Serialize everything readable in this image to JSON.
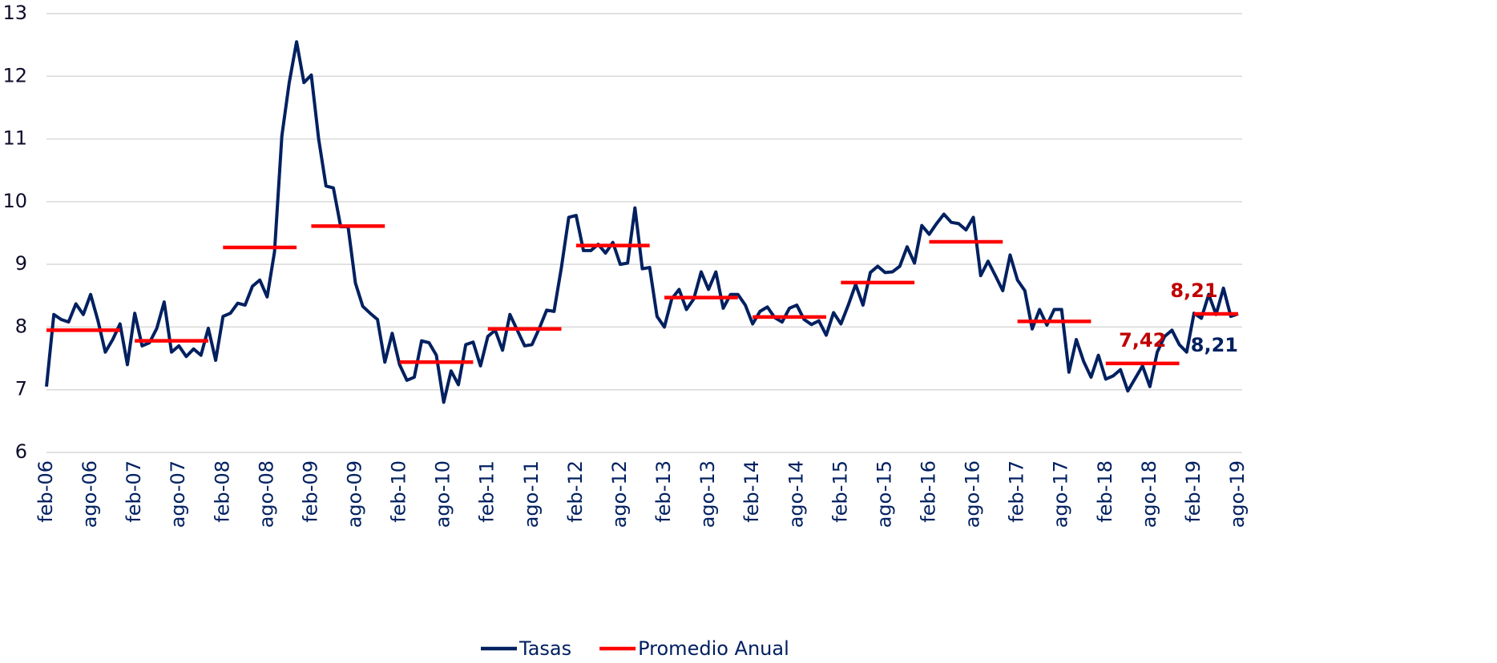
{
  "chart_data": {
    "type": "line",
    "categories": [
      "feb-06",
      null,
      null,
      null,
      null,
      null,
      "ago-06",
      null,
      null,
      null,
      null,
      null,
      "feb-07",
      null,
      null,
      null,
      null,
      null,
      "ago-07",
      null,
      null,
      null,
      null,
      null,
      "feb-08",
      null,
      null,
      null,
      null,
      null,
      "ago-08",
      null,
      null,
      null,
      null,
      null,
      "feb-09",
      null,
      null,
      null,
      null,
      null,
      "ago-09",
      null,
      null,
      null,
      null,
      null,
      "feb-10",
      null,
      null,
      null,
      null,
      null,
      "ago-10",
      null,
      null,
      null,
      null,
      null,
      "feb-11",
      null,
      null,
      null,
      null,
      null,
      "ago-11",
      null,
      null,
      null,
      null,
      null,
      "feb-12",
      null,
      null,
      null,
      null,
      null,
      "ago-12",
      null,
      null,
      null,
      null,
      null,
      "feb-13",
      null,
      null,
      null,
      null,
      null,
      "ago-13",
      null,
      null,
      null,
      null,
      null,
      "feb-14",
      null,
      null,
      null,
      null,
      null,
      "ago-14",
      null,
      null,
      null,
      null,
      null,
      "feb-15",
      null,
      null,
      null,
      null,
      null,
      "ago-15",
      null,
      null,
      null,
      null,
      null,
      "feb-16",
      null,
      null,
      null,
      null,
      null,
      "ago-16",
      null,
      null,
      null,
      null,
      null,
      "feb-17",
      null,
      null,
      null,
      null,
      null,
      "ago-17",
      null,
      null,
      null,
      null,
      null,
      "feb-18",
      null,
      null,
      null,
      null,
      null,
      "ago-18",
      null,
      null,
      null,
      null,
      null,
      "feb-19",
      null,
      null,
      null,
      null,
      null,
      "ago-19"
    ],
    "series": [
      {
        "name": "Tasas",
        "color": "#002060",
        "values": [
          7.05,
          8.2,
          8.12,
          8.08,
          8.37,
          8.2,
          8.52,
          8.1,
          7.6,
          7.8,
          8.05,
          7.4,
          8.22,
          7.7,
          7.75,
          7.98,
          8.4,
          7.6,
          7.7,
          7.53,
          7.65,
          7.55,
          7.98,
          7.47,
          8.17,
          8.22,
          8.38,
          8.35,
          8.65,
          8.75,
          8.48,
          9.2,
          11.05,
          11.9,
          12.55,
          11.9,
          12.02,
          11.0,
          10.25,
          10.22,
          9.6,
          9.6,
          8.7,
          8.33,
          8.22,
          8.12,
          7.44,
          7.9,
          7.4,
          7.15,
          7.2,
          7.78,
          7.75,
          7.55,
          6.8,
          7.3,
          7.08,
          7.72,
          7.76,
          7.38,
          7.85,
          7.95,
          7.63,
          8.2,
          7.95,
          7.7,
          7.72,
          7.98,
          8.27,
          8.25,
          8.95,
          9.75,
          9.78,
          9.22,
          9.22,
          9.32,
          9.18,
          9.35,
          9.0,
          9.02,
          9.9,
          8.93,
          8.95,
          8.17,
          8.0,
          8.45,
          8.6,
          8.28,
          8.45,
          8.88,
          8.6,
          8.88,
          8.3,
          8.52,
          8.52,
          8.35,
          8.05,
          8.25,
          8.32,
          8.15,
          8.08,
          8.3,
          8.35,
          8.12,
          8.04,
          8.1,
          7.87,
          8.23,
          8.05,
          8.35,
          8.68,
          8.35,
          8.87,
          8.97,
          8.87,
          8.88,
          8.97,
          9.28,
          9.02,
          9.62,
          9.48,
          9.65,
          9.8,
          9.67,
          9.65,
          9.55,
          9.75,
          8.82,
          9.05,
          8.82,
          8.58,
          9.15,
          8.75,
          8.58,
          7.97,
          8.28,
          8.03,
          8.28,
          8.28,
          7.28,
          7.8,
          7.45,
          7.2,
          7.55,
          7.17,
          7.22,
          7.32,
          6.98,
          7.18,
          7.38,
          7.05,
          7.6,
          7.85,
          7.95,
          7.72,
          7.6,
          8.22,
          8.14,
          8.52,
          8.2,
          8.62,
          8.17,
          8.21
        ],
        "value_labels": [
          null,
          null,
          null,
          null,
          null,
          null,
          null,
          null,
          null,
          null,
          null,
          null,
          null,
          null,
          null,
          null,
          null,
          null,
          null,
          null,
          null,
          null,
          null,
          null,
          null,
          null,
          null,
          null,
          null,
          null,
          null,
          null,
          null,
          null,
          null,
          null,
          null,
          null,
          null,
          null,
          null,
          null,
          null,
          null,
          null,
          null,
          null,
          null,
          null,
          null,
          null,
          null,
          null,
          null,
          null,
          null,
          null,
          null,
          null,
          null,
          null,
          null,
          null,
          null,
          null,
          null,
          null,
          null,
          null,
          null,
          null,
          null,
          null,
          null,
          null,
          null,
          null,
          null,
          null,
          null,
          null,
          null,
          null,
          null,
          null,
          null,
          null,
          null,
          null,
          null,
          null,
          null,
          null,
          null,
          null,
          null,
          null,
          null,
          null,
          null,
          null,
          null,
          null,
          null,
          null,
          null,
          null,
          null,
          null,
          null,
          null,
          null,
          null,
          null,
          null,
          null,
          null,
          null,
          null,
          null,
          null,
          null,
          null,
          null,
          null,
          null,
          null,
          null,
          null,
          null,
          null,
          null,
          null,
          null,
          null,
          null,
          null,
          null,
          null,
          null,
          null,
          null,
          null,
          null,
          null,
          null,
          null,
          null,
          null,
          null,
          null,
          null,
          null,
          null,
          null,
          null,
          null,
          null,
          null,
          null,
          null,
          null,
          "8,21"
        ]
      },
      {
        "name": "Promedio Anual",
        "color": "#ff0000",
        "values": [
          7.95,
          7.95,
          7.95,
          7.95,
          7.95,
          7.95,
          7.95,
          7.95,
          7.95,
          7.95,
          7.95,
          null,
          7.78,
          7.78,
          7.78,
          7.78,
          7.78,
          7.78,
          7.78,
          7.78,
          7.78,
          7.78,
          7.78,
          null,
          9.27,
          9.27,
          9.27,
          9.27,
          9.27,
          9.27,
          9.27,
          9.27,
          9.27,
          9.27,
          9.27,
          null,
          9.61,
          9.61,
          9.61,
          9.61,
          9.61,
          9.61,
          9.61,
          9.61,
          9.61,
          9.61,
          9.61,
          null,
          7.44,
          7.44,
          7.44,
          7.44,
          7.44,
          7.44,
          7.44,
          7.44,
          7.44,
          7.44,
          7.44,
          null,
          7.97,
          7.97,
          7.97,
          7.97,
          7.97,
          7.97,
          7.97,
          7.97,
          7.97,
          7.97,
          7.97,
          null,
          9.3,
          9.3,
          9.3,
          9.3,
          9.3,
          9.3,
          9.3,
          9.3,
          9.3,
          9.3,
          9.3,
          null,
          8.47,
          8.47,
          8.47,
          8.47,
          8.47,
          8.47,
          8.47,
          8.47,
          8.47,
          8.47,
          8.47,
          null,
          8.16,
          8.16,
          8.16,
          8.16,
          8.16,
          8.16,
          8.16,
          8.16,
          8.16,
          8.16,
          8.16,
          null,
          8.71,
          8.71,
          8.71,
          8.71,
          8.71,
          8.71,
          8.71,
          8.71,
          8.71,
          8.71,
          8.71,
          null,
          9.36,
          9.36,
          9.36,
          9.36,
          9.36,
          9.36,
          9.36,
          9.36,
          9.36,
          9.36,
          9.36,
          null,
          8.09,
          8.09,
          8.09,
          8.09,
          8.09,
          8.09,
          8.09,
          8.09,
          8.09,
          8.09,
          8.09,
          null,
          7.42,
          7.42,
          7.42,
          7.42,
          7.42,
          7.42,
          7.42,
          7.42,
          7.42,
          7.42,
          7.42,
          null,
          8.21,
          8.21,
          8.21,
          8.21,
          8.21,
          8.21,
          8.21
        ],
        "value_labels": [
          null,
          null,
          null,
          null,
          null,
          null,
          null,
          null,
          null,
          null,
          null,
          null,
          null,
          null,
          null,
          null,
          null,
          null,
          null,
          null,
          null,
          null,
          null,
          null,
          null,
          null,
          null,
          null,
          null,
          null,
          null,
          null,
          null,
          null,
          null,
          null,
          null,
          null,
          null,
          null,
          null,
          null,
          null,
          null,
          null,
          null,
          null,
          null,
          null,
          null,
          null,
          null,
          null,
          null,
          null,
          null,
          null,
          null,
          null,
          null,
          null,
          null,
          null,
          null,
          null,
          null,
          null,
          null,
          null,
          null,
          null,
          null,
          null,
          null,
          null,
          null,
          null,
          null,
          null,
          null,
          null,
          null,
          null,
          null,
          null,
          null,
          null,
          null,
          null,
          null,
          null,
          null,
          null,
          null,
          null,
          null,
          null,
          null,
          null,
          null,
          null,
          null,
          null,
          null,
          null,
          null,
          null,
          null,
          null,
          null,
          null,
          null,
          null,
          null,
          null,
          null,
          null,
          null,
          null,
          null,
          null,
          null,
          null,
          null,
          null,
          null,
          null,
          null,
          null,
          null,
          null,
          null,
          null,
          null,
          null,
          null,
          null,
          null,
          null,
          null,
          null,
          null,
          null,
          null,
          null,
          null,
          null,
          null,
          null,
          "7,42",
          null,
          null,
          null,
          null,
          null,
          null,
          "8,21",
          null,
          null,
          null,
          null,
          null,
          null
        ]
      }
    ],
    "ylim": [
      6,
      13
    ],
    "yticks": [
      6,
      7,
      8,
      9,
      10,
      11,
      12,
      13
    ],
    "grid": true,
    "legend": "bottom"
  }
}
